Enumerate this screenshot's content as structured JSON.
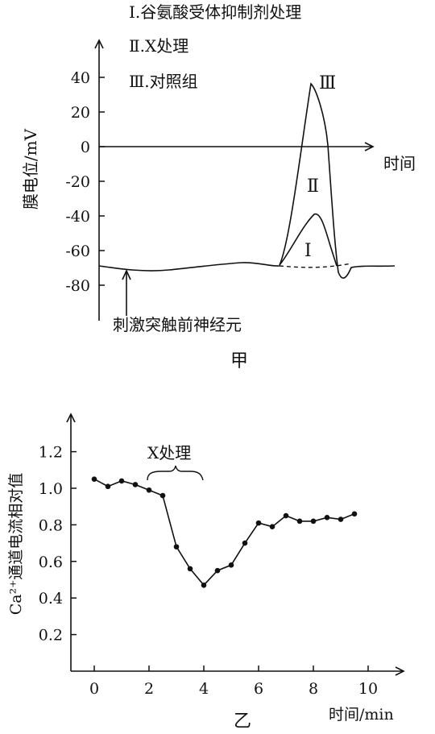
{
  "chart_data": [
    {
      "id": "jia",
      "type": "line",
      "caption": "甲",
      "ylabel": "膜电位/mV",
      "xlabel": "时间",
      "y_ticks": [
        "40",
        "20",
        "0",
        "-20",
        "-40",
        "-60",
        "-80"
      ],
      "ylim": [
        -80,
        40
      ],
      "legend": [
        "Ⅰ.谷氨酸受体抑制剂处理",
        "Ⅱ.X处理",
        "Ⅲ.对照组"
      ],
      "annotation": "刺激突触前神经元",
      "curve_labels": {
        "I": "Ⅰ",
        "II": "Ⅱ",
        "III": "Ⅲ"
      },
      "peaks": {
        "I": -70,
        "II": -38,
        "III": 35
      },
      "baseline": -70,
      "undershoot": -77
    },
    {
      "id": "yi",
      "type": "line",
      "caption": "乙",
      "ylabel": "Ca²⁺通道电流相对值",
      "xlabel": "时间/min",
      "x_ticks": [
        "0",
        "2",
        "4",
        "6",
        "8",
        "10"
      ],
      "y_ticks": [
        "1.2",
        "1.0",
        "0.8",
        "0.6",
        "0.4",
        "0.2"
      ],
      "xlim": [
        0,
        10
      ],
      "ylim": [
        0,
        1.2
      ],
      "annotation": "X处理",
      "treatment_interval": [
        2,
        4
      ],
      "series": [
        {
          "x": [
            0,
            0.5,
            1,
            1.5,
            2,
            2.5,
            3,
            3.5,
            4,
            4.5,
            5,
            5.5,
            6,
            6.5,
            7,
            7.5,
            8,
            8.5,
            9,
            9.5
          ],
          "y": [
            1.05,
            1.01,
            1.04,
            1.02,
            0.99,
            0.96,
            0.68,
            0.56,
            0.47,
            0.55,
            0.58,
            0.7,
            0.81,
            0.79,
            0.85,
            0.82,
            0.82,
            0.84,
            0.83,
            0.86
          ]
        }
      ]
    }
  ]
}
